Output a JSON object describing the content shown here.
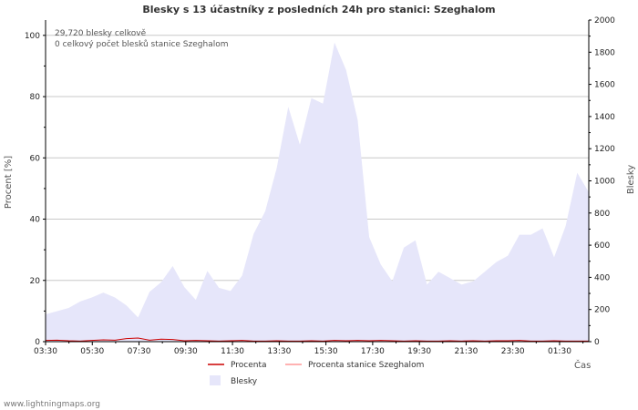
{
  "chart_data": {
    "type": "area",
    "title": "Blesky s 13 účastníky z posledních 24h pro stanici: Szeghalom",
    "ylabel_left": "Procent   [%]",
    "ylabel_right": "Blesky",
    "xlabel": "Čas",
    "ylim_left": [
      0,
      105
    ],
    "ylim_right": [
      0,
      2000
    ],
    "yticks_left": [
      "0",
      "20",
      "40",
      "60",
      "80",
      "100"
    ],
    "yticks_right": [
      "0",
      "200",
      "400",
      "600",
      "800",
      "1000",
      "1200",
      "1400",
      "1600",
      "1800",
      "2000"
    ],
    "x_ticks": [
      "03:30",
      "05:30",
      "07:30",
      "09:30",
      "11:30",
      "13:30",
      "15:30",
      "17:30",
      "19:30",
      "21:30",
      "23:30",
      "01:30"
    ],
    "annotations": [
      "29,720 blesky celkově",
      "0 celkový počet blesků stanice Szeghalom"
    ],
    "legend": [
      "Procenta",
      "Procenta stanice Szeghalom",
      "Blesky"
    ],
    "series": [
      {
        "name": "Blesky",
        "axis": "right",
        "color": "#e6e6fa",
        "values": [
          170,
          190,
          210,
          250,
          275,
          305,
          275,
          225,
          150,
          310,
          370,
          470,
          340,
          260,
          440,
          335,
          315,
          410,
          670,
          810,
          1080,
          1460,
          1225,
          1515,
          1480,
          1860,
          1690,
          1380,
          650,
          480,
          375,
          585,
          630,
          355,
          435,
          395,
          355,
          375,
          435,
          495,
          535,
          665,
          665,
          705,
          525,
          720,
          1050,
          930
        ]
      },
      {
        "name": "Procenta",
        "axis": "left",
        "color": "#cc0000",
        "values": [
          0.4,
          0.5,
          0.3,
          0.2,
          0.4,
          0.6,
          0.5,
          1.0,
          1.2,
          0.5,
          0.8,
          0.7,
          0.3,
          0.4,
          0.3,
          0.2,
          0.3,
          0.4,
          0.2,
          0.2,
          0.3,
          0.2,
          0.2,
          0.3,
          0.2,
          0.4,
          0.3,
          0.4,
          0.3,
          0.4,
          0.3,
          0.2,
          0.3,
          0.2,
          0.2,
          0.3,
          0.2,
          0.3,
          0.2,
          0.3,
          0.3,
          0.4,
          0.2,
          0.2,
          0.3,
          0.2,
          0.2,
          0.2
        ]
      },
      {
        "name": "Procenta stanice Szeghalom",
        "axis": "left",
        "color": "#ff9999",
        "values": [
          0,
          0,
          0,
          0,
          0,
          0,
          0,
          0,
          0,
          0,
          0,
          0,
          0,
          0,
          0,
          0,
          0,
          0,
          0,
          0,
          0,
          0,
          0,
          0,
          0,
          0,
          0,
          0,
          0,
          0,
          0,
          0,
          0,
          0,
          0,
          0,
          0,
          0,
          0,
          0,
          0,
          0,
          0,
          0,
          0,
          0,
          0,
          0
        ]
      }
    ]
  },
  "watermark": "www.lightningmaps.org"
}
